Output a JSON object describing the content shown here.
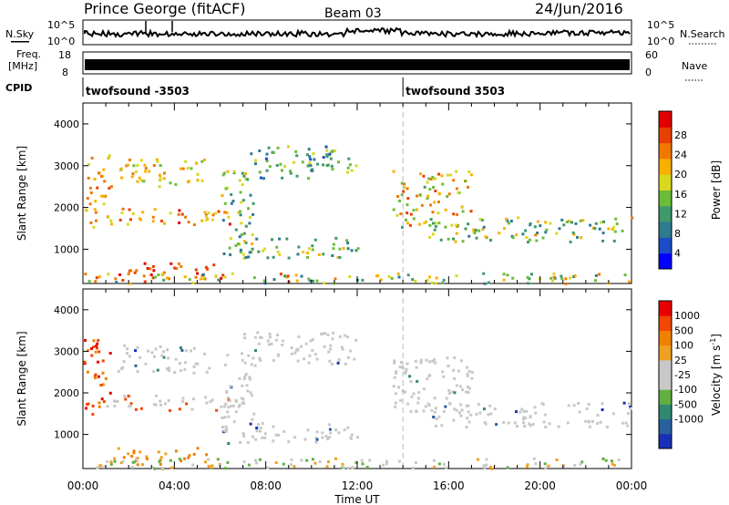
{
  "header": {
    "station": "Prince George (fitACF)",
    "beam": "Beam 03",
    "date": "24/Jun/2016"
  },
  "noise_panel": {
    "left_label": "N.Sky",
    "right_label": "N.Search",
    "tick_top": "10^5",
    "tick_bottom": "10^0",
    "right_tick_top": "10^5",
    "right_tick_bottom": "10^0"
  },
  "freq_panel": {
    "left_label_1": "Freq.",
    "left_label_2": "[MHz]",
    "tick_top": "18",
    "tick_bottom": "8",
    "right_label": "Nave",
    "right_tick_top": "60",
    "right_tick_bottom": "0"
  },
  "cpid": {
    "label": "CPID",
    "segments": [
      {
        "start_hour": 0,
        "name": "twofsound -3503"
      },
      {
        "start_hour": 14,
        "name": "twofsound 3503"
      }
    ]
  },
  "chart_data": [
    {
      "type": "heatmap",
      "name": "power",
      "ylabel": "Slant Range [km]",
      "ylim": [
        180,
        4500
      ],
      "yticks": [
        "1000",
        "2000",
        "3000",
        "4000"
      ],
      "xlim_hours": [
        0,
        24
      ],
      "colorbar": {
        "label": "Power [dB]",
        "ticks": [
          "4",
          "8",
          "12",
          "16",
          "20",
          "24",
          "28"
        ],
        "colors": [
          "#0000ff",
          "#1c4cc8",
          "#2e7a90",
          "#3e9a6a",
          "#6cbc3a",
          "#d8d820",
          "#f8b000",
          "#f07800",
          "#e84000",
          "#e00000"
        ]
      }
    },
    {
      "type": "heatmap",
      "name": "velocity",
      "ylabel": "Slant Range [km]",
      "ylim": [
        180,
        4500
      ],
      "yticks": [
        "1000",
        "2000",
        "3000",
        "4000"
      ],
      "xlim_hours": [
        0,
        24
      ],
      "colorbar": {
        "label": "Velocity [m s",
        "label_sup": "-1",
        "ticks": [
          "1000",
          "500",
          "100",
          "25",
          "-25",
          "-100",
          "-500",
          "-1000"
        ],
        "colors": [
          "#1830b8",
          "#2860a0",
          "#308870",
          "#60b040",
          "#c8c8c8",
          "#c8c8c8",
          "#f0a020",
          "#f08000",
          "#f04800",
          "#e80000"
        ]
      }
    }
  ],
  "xaxis": {
    "label": "Time UT",
    "ticks": [
      "00:00",
      "04:00",
      "08:00",
      "12:00",
      "16:00",
      "20:00",
      "00:00"
    ]
  }
}
